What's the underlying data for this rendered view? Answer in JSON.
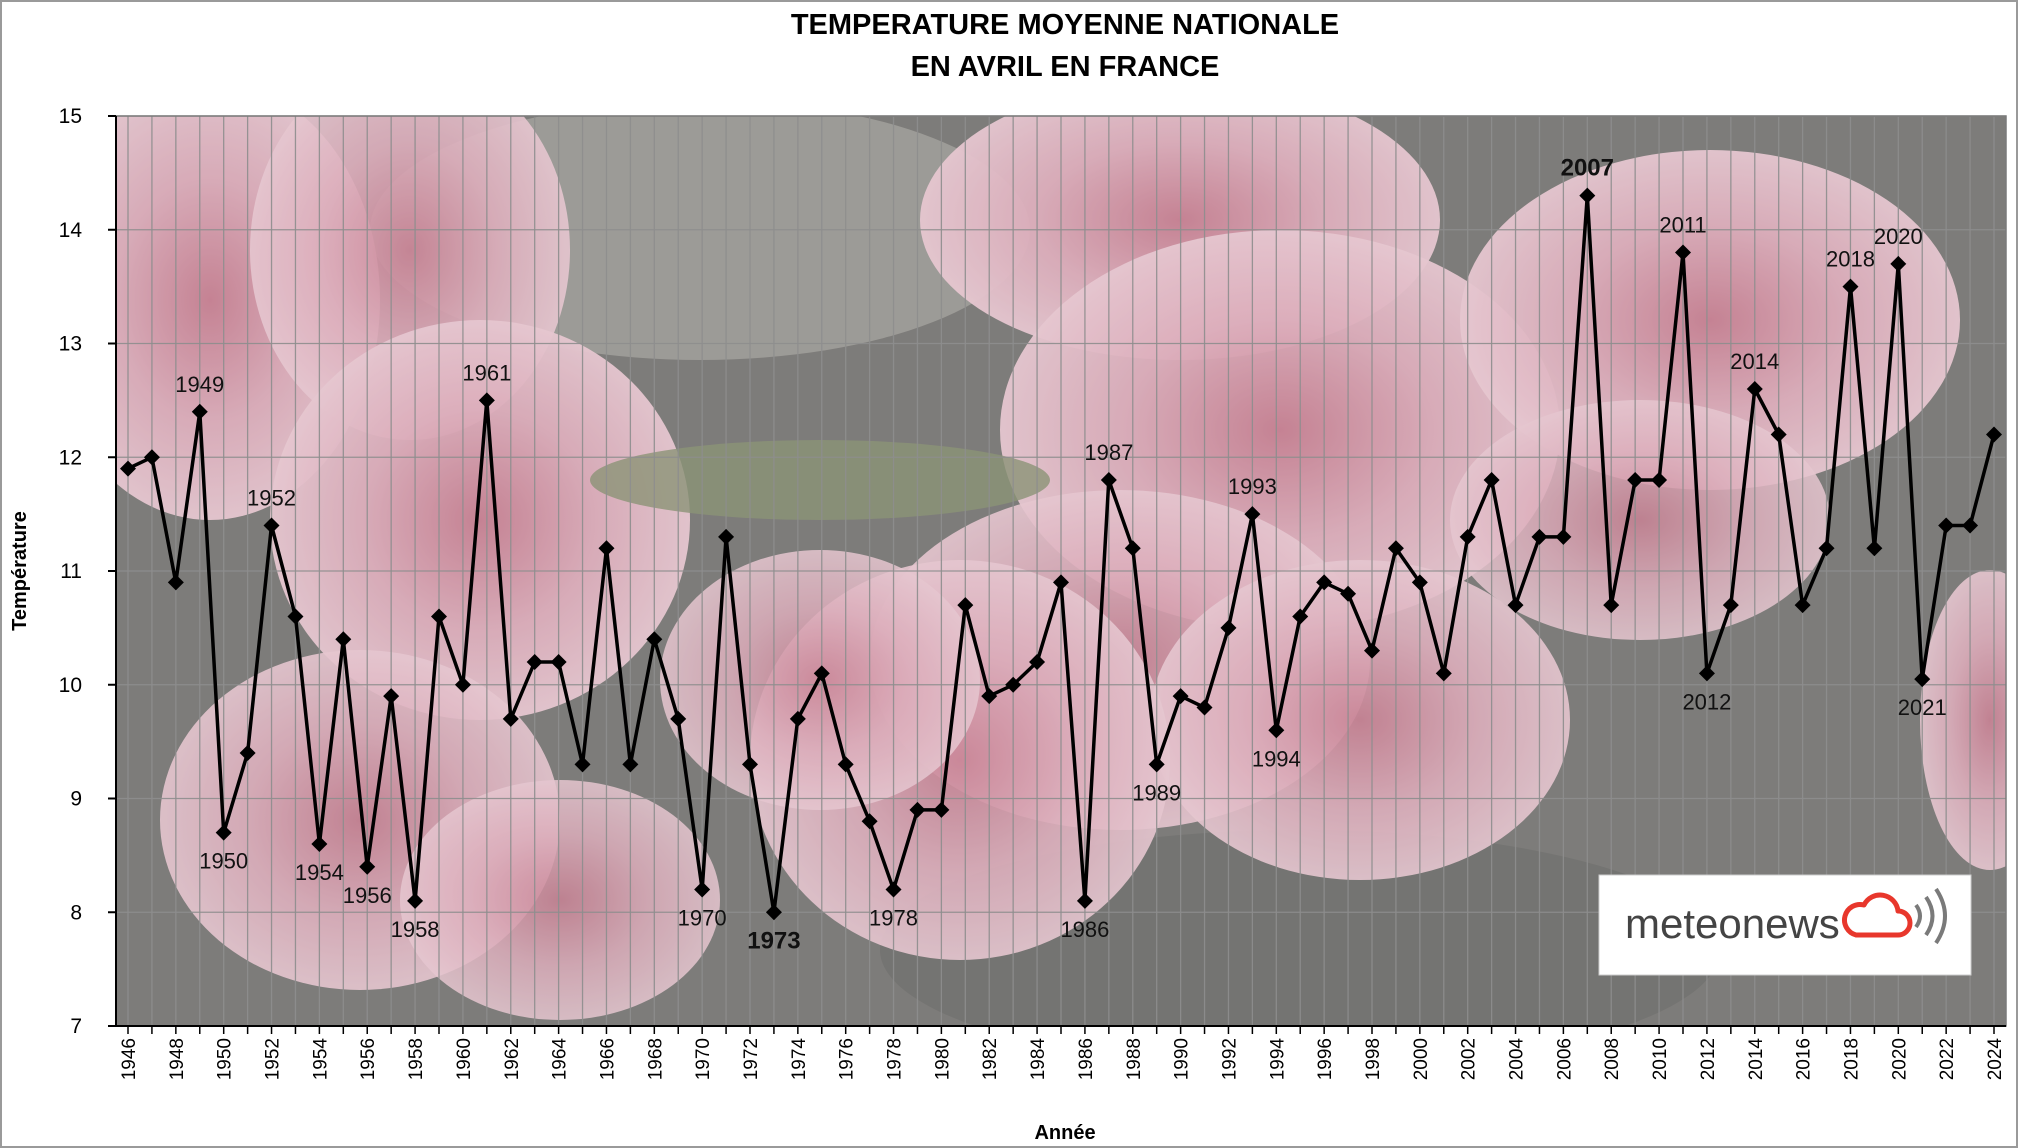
{
  "chart_data": {
    "type": "line",
    "title": [
      "TEMPERATURE MOYENNE NATIONALE",
      "EN AVRIL EN FRANCE"
    ],
    "xlabel": "Année",
    "ylabel": "Température",
    "ylim": [
      7,
      15
    ],
    "yticks": [
      7,
      8,
      9,
      10,
      11,
      12,
      13,
      14,
      15
    ],
    "x": [
      1946,
      1947,
      1948,
      1949,
      1950,
      1951,
      1952,
      1953,
      1954,
      1955,
      1956,
      1957,
      1958,
      1959,
      1960,
      1961,
      1962,
      1963,
      1964,
      1965,
      1966,
      1967,
      1968,
      1969,
      1970,
      1971,
      1972,
      1973,
      1974,
      1975,
      1976,
      1977,
      1978,
      1979,
      1980,
      1981,
      1982,
      1983,
      1984,
      1985,
      1986,
      1987,
      1988,
      1989,
      1990,
      1991,
      1992,
      1993,
      1994,
      1995,
      1996,
      1997,
      1998,
      1999,
      2000,
      2001,
      2002,
      2003,
      2004,
      2005,
      2006,
      2007,
      2008,
      2009,
      2010,
      2011,
      2012,
      2013,
      2014,
      2015,
      2016,
      2017,
      2018,
      2019,
      2020,
      2021,
      2022,
      2023,
      2024
    ],
    "xtick_labels": [
      "1946",
      "1948",
      "1950",
      "1952",
      "1954",
      "1956",
      "1958",
      "1960",
      "1962",
      "1964",
      "1966",
      "1968",
      "1970",
      "1972",
      "1974",
      "1976",
      "1978",
      "1980",
      "1982",
      "1984",
      "1986",
      "1988",
      "1990",
      "1992",
      "1994",
      "1996",
      "1998",
      "2000",
      "2002",
      "2004",
      "2006",
      "2008",
      "2010",
      "2012",
      "2014",
      "2016",
      "2018",
      "2020",
      "2022",
      "2024"
    ],
    "series": [
      {
        "values": [
          11.9,
          12.0,
          10.9,
          12.4,
          8.7,
          9.4,
          11.4,
          10.6,
          8.6,
          10.4,
          8.4,
          9.9,
          8.1,
          10.6,
          10.0,
          12.5,
          9.7,
          10.2,
          10.2,
          9.3,
          11.2,
          9.3,
          10.4,
          9.7,
          8.2,
          11.3,
          9.3,
          8.0,
          9.7,
          10.1,
          9.3,
          8.8,
          8.2,
          8.9,
          8.9,
          10.7,
          9.9,
          10.0,
          10.2,
          10.9,
          8.1,
          11.8,
          11.2,
          9.3,
          9.9,
          9.8,
          10.5,
          11.5,
          9.6,
          10.6,
          10.9,
          10.8,
          10.3,
          11.2,
          10.9,
          10.1,
          11.3,
          11.8,
          10.7,
          11.3,
          11.3,
          14.3,
          10.7,
          11.8,
          11.8,
          13.8,
          10.1,
          10.7,
          12.6,
          12.2,
          10.7,
          11.2,
          13.5,
          11.2,
          13.7,
          10.05,
          11.4,
          11.4,
          12.2
        ],
        "color": "#000000"
      }
    ],
    "annotations": [
      {
        "year": 1949,
        "text": "1949",
        "pos": "above",
        "color": "#111111",
        "bold": false
      },
      {
        "year": 1950,
        "text": "1950",
        "pos": "below",
        "color": "#111111",
        "bold": false
      },
      {
        "year": 1952,
        "text": "1952",
        "pos": "above",
        "color": "#111111",
        "bold": false
      },
      {
        "year": 1954,
        "text": "1954",
        "pos": "below",
        "color": "#111111",
        "bold": false
      },
      {
        "year": 1956,
        "text": "1956",
        "pos": "below",
        "color": "#111111",
        "bold": false
      },
      {
        "year": 1958,
        "text": "1958",
        "pos": "below",
        "color": "#111111",
        "bold": false
      },
      {
        "year": 1961,
        "text": "1961",
        "pos": "above",
        "color": "#111111",
        "bold": false
      },
      {
        "year": 1970,
        "text": "1970",
        "pos": "below",
        "color": "#111111",
        "bold": false
      },
      {
        "year": 1973,
        "text": "1973",
        "pos": "below",
        "color": "#1a1aff",
        "bold": true
      },
      {
        "year": 1978,
        "text": "1978",
        "pos": "below",
        "color": "#111111",
        "bold": false
      },
      {
        "year": 1986,
        "text": "1986",
        "pos": "below",
        "color": "#111111",
        "bold": false
      },
      {
        "year": 1987,
        "text": "1987",
        "pos": "above",
        "color": "#111111",
        "bold": false
      },
      {
        "year": 1989,
        "text": "1989",
        "pos": "below",
        "color": "#111111",
        "bold": false
      },
      {
        "year": 1993,
        "text": "1993",
        "pos": "above",
        "color": "#111111",
        "bold": false
      },
      {
        "year": 1994,
        "text": "1994",
        "pos": "below",
        "color": "#111111",
        "bold": false
      },
      {
        "year": 2007,
        "text": "2007",
        "pos": "above",
        "color": "#e8372c",
        "bold": true
      },
      {
        "year": 2011,
        "text": "2011",
        "pos": "above",
        "color": "#111111",
        "bold": false
      },
      {
        "year": 2012,
        "text": "2012",
        "pos": "below",
        "color": "#111111",
        "bold": false
      },
      {
        "year": 2014,
        "text": "2014",
        "pos": "above",
        "color": "#111111",
        "bold": false
      },
      {
        "year": 2018,
        "text": "2018",
        "pos": "above",
        "color": "#111111",
        "bold": false
      },
      {
        "year": 2020,
        "text": "2020",
        "pos": "above",
        "color": "#111111",
        "bold": false
      },
      {
        "year": 2021,
        "text": "2021",
        "pos": "below",
        "color": "#111111",
        "bold": false
      }
    ],
    "grid": true,
    "legend": "none"
  },
  "logo": {
    "text": "meteonews",
    "icon": "cloud-signal-icon",
    "accent_color": "#e8372c"
  }
}
